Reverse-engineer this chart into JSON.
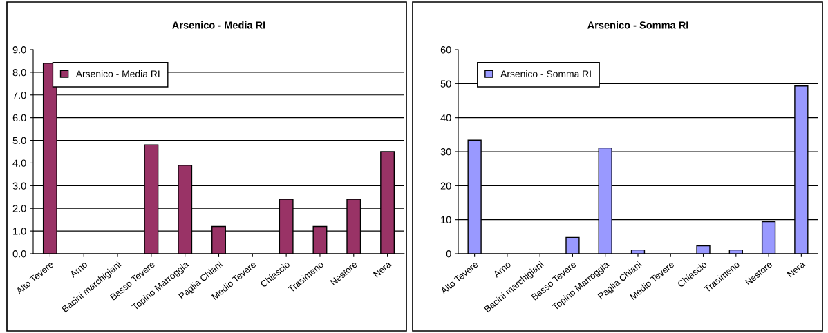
{
  "chart_data": [
    {
      "type": "bar",
      "title": "Arsenico - Media RI",
      "categories": [
        "Alto Tevere",
        "Arno",
        "Bacini marchigiani",
        "Basso Tevere",
        "Topino Marroggia",
        "Paglia Chiani",
        "Medio Tevere",
        "Chiascio",
        "Trasimeno",
        "Nestore",
        "Nera"
      ],
      "series": [
        {
          "name": "Arsenico - Media RI",
          "color": "#993366",
          "values": [
            8.4,
            null,
            null,
            4.8,
            3.9,
            1.2,
            null,
            2.4,
            1.2,
            2.4,
            4.5
          ]
        }
      ],
      "ylim": [
        0,
        9
      ],
      "yticks": [
        {
          "value": 0,
          "label": "0.0"
        },
        {
          "value": 1,
          "label": "1.0"
        },
        {
          "value": 2,
          "label": "2.0"
        },
        {
          "value": 3,
          "label": "3.0"
        },
        {
          "value": 4,
          "label": "4.0"
        },
        {
          "value": 5,
          "label": "5.0"
        },
        {
          "value": 6,
          "label": "6.0"
        },
        {
          "value": 7,
          "label": "7.0"
        },
        {
          "value": 8,
          "label": "8.0"
        },
        {
          "value": 9,
          "label": "9.0"
        }
      ],
      "grid": "y",
      "legend": "top left"
    },
    {
      "type": "bar",
      "title": "Arsenico - Somma RI",
      "categories": [
        "Alto Tevere",
        "Arno",
        "Bacini marchigiani",
        "Basso Tevere",
        "Topino Marroggia",
        "Paglia Chiani",
        "Medio Tevere",
        "Chiascio",
        "Trasimeno",
        "Nestore",
        "Nera"
      ],
      "series": [
        {
          "name": "Arsenico - Somma RI",
          "color": "#9999ff",
          "values": [
            33.4,
            null,
            null,
            4.8,
            31.1,
            1.1,
            null,
            2.3,
            1.1,
            9.4,
            49.3
          ]
        }
      ],
      "ylim": [
        0,
        60
      ],
      "yticks": [
        0,
        10,
        20,
        30,
        40,
        50,
        60
      ],
      "grid": "y",
      "legend": "top left"
    }
  ]
}
